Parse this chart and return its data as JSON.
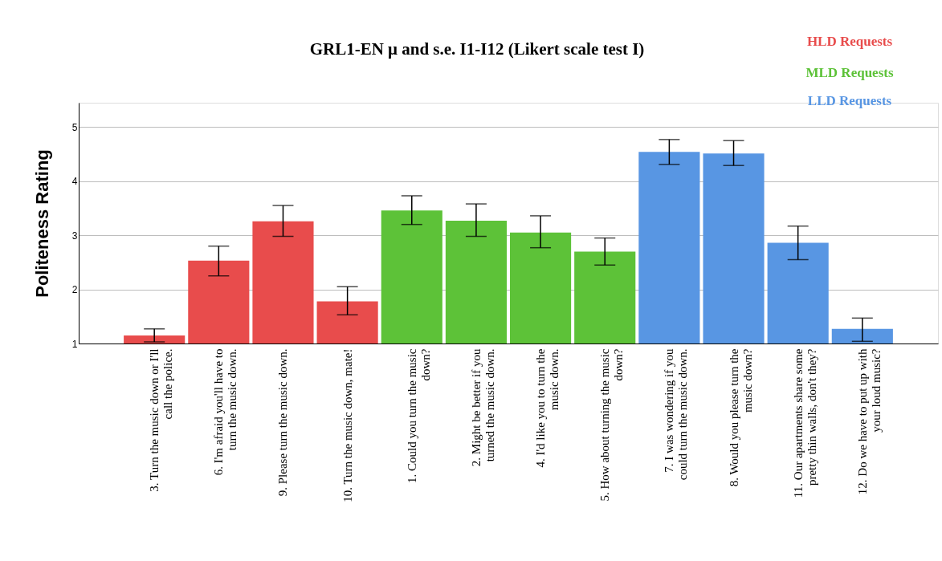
{
  "chart_data": {
    "type": "bar",
    "title": "GRL1-EN μ and s.e. I1-I12 (Likert scale test I)",
    "ylabel": "Politeness Rating",
    "categories": [
      "3. Turn the music down or I'll call the police.",
      "6. I'm afraid you'll have to turn the music down.",
      "9. Please turn the music down.",
      "10. Turn the music down, mate!",
      "1. Could you turn the music down?",
      "2. Might be better if you turned the music down.",
      "4. I'd like you to turn the music down.",
      "5. How about turning the music down?",
      "7. I was wondering if you could turn the music down.",
      "8. Would you please turn the music down?",
      "11. Our apartments share some pretty thin walls, don't they?",
      "12. Do we have to put up with your loud music?"
    ],
    "series": [
      {
        "name": "HLD Requests",
        "color": "#e84c4c",
        "values": [
          1.15,
          2.53,
          3.26,
          1.78,
          null,
          null,
          null,
          null,
          null,
          null,
          null,
          null
        ],
        "errors": [
          [
            1.03,
            1.27
          ],
          [
            2.25,
            2.8
          ],
          [
            2.98,
            3.55
          ],
          [
            1.53,
            2.05
          ],
          null,
          null,
          null,
          null,
          null,
          null,
          null,
          null
        ]
      },
      {
        "name": "MLD Requests",
        "color": "#5dc238",
        "values": [
          null,
          null,
          null,
          null,
          3.46,
          3.27,
          3.05,
          2.7,
          null,
          null,
          null,
          null
        ],
        "errors": [
          null,
          null,
          null,
          null,
          [
            3.2,
            3.73
          ],
          [
            2.98,
            3.58
          ],
          [
            2.77,
            3.36
          ],
          [
            2.45,
            2.95
          ],
          null,
          null,
          null,
          null
        ]
      },
      {
        "name": "LLD Requests",
        "color": "#5896e3",
        "values": [
          null,
          null,
          null,
          null,
          null,
          null,
          null,
          null,
          4.54,
          4.51,
          2.86,
          1.27
        ],
        "errors": [
          null,
          null,
          null,
          null,
          null,
          null,
          null,
          null,
          [
            4.31,
            4.77
          ],
          [
            4.29,
            4.75
          ],
          [
            2.55,
            3.17
          ],
          [
            1.04,
            1.47
          ]
        ]
      }
    ],
    "ylim": [
      1,
      5.45
    ],
    "yticks": [
      1,
      2,
      3,
      4,
      5
    ],
    "grid": "y",
    "legend": "top right"
  }
}
